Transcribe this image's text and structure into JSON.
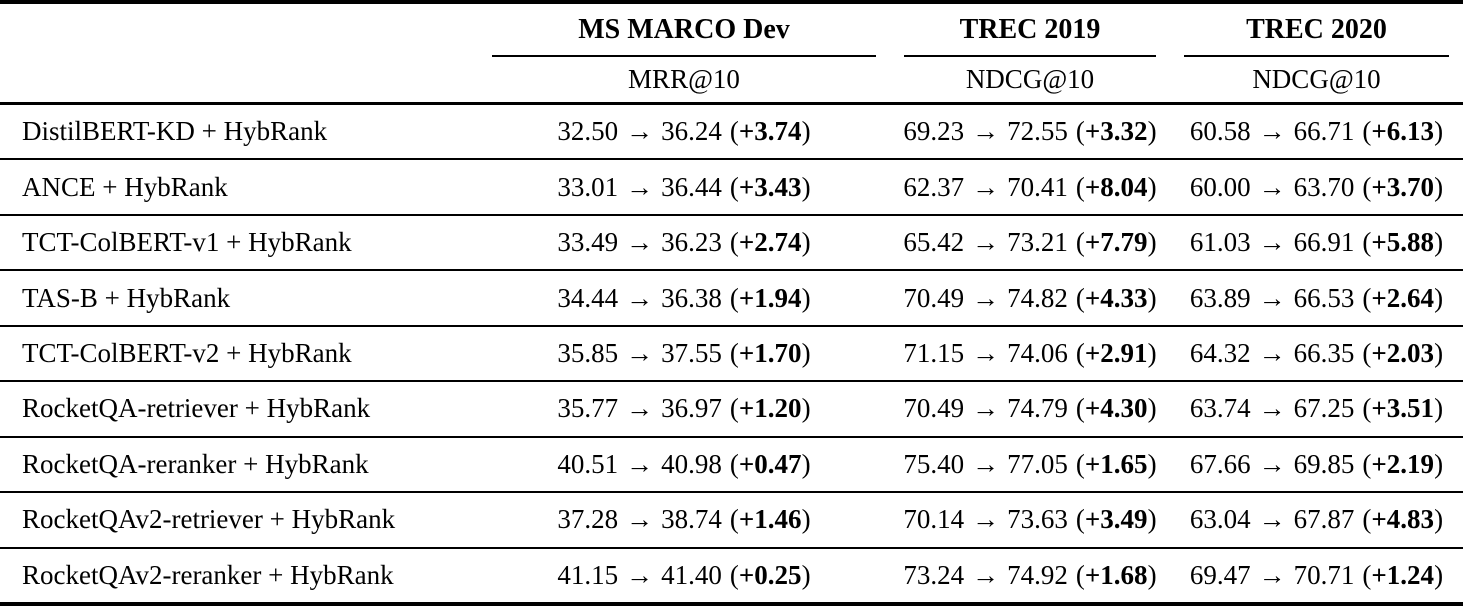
{
  "glyphs": {
    "arrow": "→",
    "open_paren": "(",
    "close_paren": ")"
  },
  "header": {
    "groups": [
      {
        "label": "MS MARCO Dev",
        "metric": "MRR@10"
      },
      {
        "label": "TREC 2019",
        "metric": "NDCG@10"
      },
      {
        "label": "TREC 2020",
        "metric": "NDCG@10"
      }
    ]
  },
  "rows": [
    {
      "label": "DistilBERT-KD + HybRank",
      "cells": [
        {
          "from": "32.50",
          "to": "36.24",
          "delta": "+3.74"
        },
        {
          "from": "69.23",
          "to": "72.55",
          "delta": "+3.32"
        },
        {
          "from": "60.58",
          "to": "66.71",
          "delta": "+6.13"
        }
      ]
    },
    {
      "label": "ANCE + HybRank",
      "cells": [
        {
          "from": "33.01",
          "to": "36.44",
          "delta": "+3.43"
        },
        {
          "from": "62.37",
          "to": "70.41",
          "delta": "+8.04"
        },
        {
          "from": "60.00",
          "to": "63.70",
          "delta": "+3.70"
        }
      ]
    },
    {
      "label": "TCT-ColBERT-v1 + HybRank",
      "cells": [
        {
          "from": "33.49",
          "to": "36.23",
          "delta": "+2.74"
        },
        {
          "from": "65.42",
          "to": "73.21",
          "delta": "+7.79"
        },
        {
          "from": "61.03",
          "to": "66.91",
          "delta": "+5.88"
        }
      ]
    },
    {
      "label": "TAS-B + HybRank",
      "cells": [
        {
          "from": "34.44",
          "to": "36.38",
          "delta": "+1.94"
        },
        {
          "from": "70.49",
          "to": "74.82",
          "delta": "+4.33"
        },
        {
          "from": "63.89",
          "to": "66.53",
          "delta": "+2.64"
        }
      ]
    },
    {
      "label": "TCT-ColBERT-v2 + HybRank",
      "cells": [
        {
          "from": "35.85",
          "to": "37.55",
          "delta": "+1.70"
        },
        {
          "from": "71.15",
          "to": "74.06",
          "delta": "+2.91"
        },
        {
          "from": "64.32",
          "to": "66.35",
          "delta": "+2.03"
        }
      ]
    },
    {
      "label": "RocketQA-retriever + HybRank",
      "cells": [
        {
          "from": "35.77",
          "to": "36.97",
          "delta": "+1.20"
        },
        {
          "from": "70.49",
          "to": "74.79",
          "delta": "+4.30"
        },
        {
          "from": "63.74",
          "to": "67.25",
          "delta": "+3.51"
        }
      ]
    },
    {
      "label": "RocketQA-reranker + HybRank",
      "cells": [
        {
          "from": "40.51",
          "to": "40.98",
          "delta": "+0.47"
        },
        {
          "from": "75.40",
          "to": "77.05",
          "delta": "+1.65"
        },
        {
          "from": "67.66",
          "to": "69.85",
          "delta": "+2.19"
        }
      ]
    },
    {
      "label": "RocketQAv2-retriever + HybRank",
      "cells": [
        {
          "from": "37.28",
          "to": "38.74",
          "delta": "+1.46"
        },
        {
          "from": "70.14",
          "to": "73.63",
          "delta": "+3.49"
        },
        {
          "from": "63.04",
          "to": "67.87",
          "delta": "+4.83"
        }
      ]
    },
    {
      "label": "RocketQAv2-reranker + HybRank",
      "cells": [
        {
          "from": "41.15",
          "to": "41.40",
          "delta": "+0.25"
        },
        {
          "from": "73.24",
          "to": "74.92",
          "delta": "+1.68"
        },
        {
          "from": "69.47",
          "to": "70.71",
          "delta": "+1.24"
        }
      ]
    }
  ]
}
